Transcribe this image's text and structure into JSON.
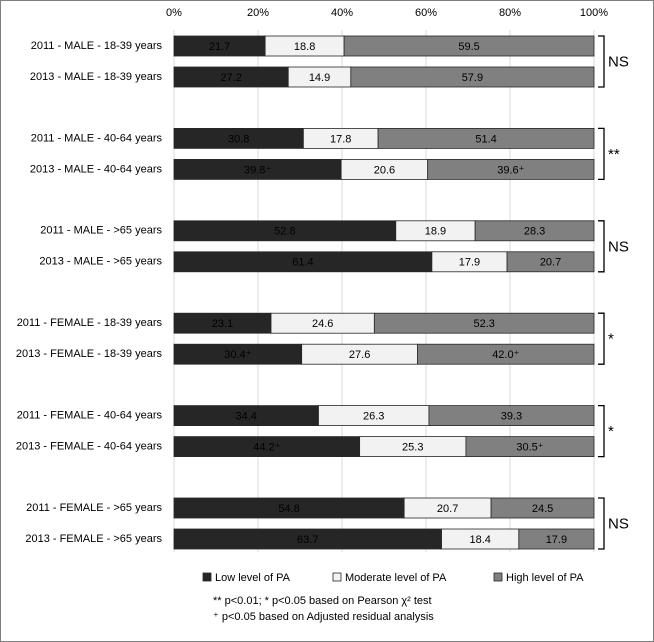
{
  "chart_data": {
    "type": "stacked-bar-horizontal",
    "categories": [
      "2011 - MALE - 18-39 years",
      "2013 - MALE - 18-39 years",
      "2011 - MALE - 40-64 years",
      "2013 - MALE - 40-64 years",
      "2011 - MALE - >65 years",
      "2013 - MALE - >65 years",
      "2011 - FEMALE - 18-39 years",
      "2013 - FEMALE - 18-39 years",
      "2011 - FEMALE - 40-64 years",
      "2013 - FEMALE - 40-64 years",
      "2011 - FEMALE - >65 years",
      "2013 - FEMALE - >65 years"
    ],
    "series": [
      {
        "name": "Low level of PA",
        "color": "#262626",
        "label_color": "#ffffff",
        "values": [
          21.7,
          27.2,
          30.8,
          39.8,
          52.8,
          61.4,
          23.1,
          30.4,
          34.4,
          44.2,
          54.8,
          63.7
        ],
        "value_labels": [
          "21.7",
          "27.2",
          "30.8",
          "39.8⁺",
          "52.8",
          "61.4",
          "23.1",
          "30.4⁺",
          "34.4",
          "44.2⁺",
          "54.8",
          "63.7"
        ]
      },
      {
        "name": "Moderate level of PA",
        "color": "#f2f2f2",
        "label_color": "#000000",
        "values": [
          18.8,
          14.9,
          17.8,
          20.6,
          18.9,
          17.9,
          24.6,
          27.6,
          26.3,
          25.3,
          20.7,
          18.4
        ],
        "value_labels": [
          "18.8",
          "14.9",
          "17.8",
          "20.6",
          "18.9",
          "17.9",
          "24.6",
          "27.6",
          "26.3",
          "25.3",
          "20.7",
          "18.4"
        ]
      },
      {
        "name": "High level of PA",
        "color": "#808080",
        "label_color": "#000000",
        "values": [
          59.5,
          57.9,
          51.4,
          39.6,
          28.3,
          20.7,
          52.3,
          42.0,
          39.3,
          30.5,
          24.5,
          17.9
        ],
        "value_labels": [
          "59.5",
          "57.9",
          "51.4",
          "39.6⁺",
          "28.3",
          "20.7",
          "52.3",
          "42.0⁺",
          "39.3",
          "30.5⁺",
          "24.5",
          "17.9"
        ]
      }
    ],
    "significance": [
      "NS",
      "**",
      "NS",
      "*",
      "*",
      "NS"
    ],
    "xlim": [
      0,
      100
    ],
    "xticks": [
      {
        "value": 0,
        "label": "0%"
      },
      {
        "value": 20,
        "label": "20%"
      },
      {
        "value": 40,
        "label": "40%"
      },
      {
        "value": 60,
        "label": "60%"
      },
      {
        "value": 80,
        "label": "80%"
      },
      {
        "value": 100,
        "label": "100%"
      }
    ],
    "grid": true,
    "legend": "bottom",
    "notes": [
      "** p<0.01; * p<0.05 based on Pearson χ² test",
      "⁺ p<0.05 based on Adjusted residual analysis"
    ]
  }
}
